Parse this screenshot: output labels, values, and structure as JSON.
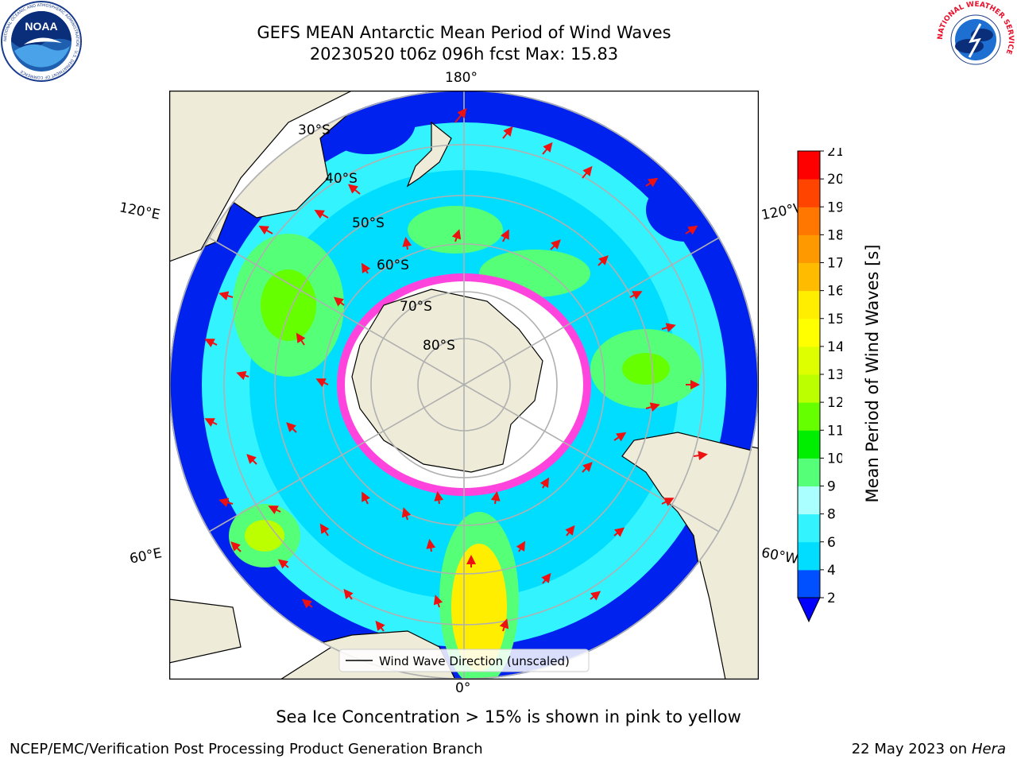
{
  "header": {
    "title_line1": "GEFS MEAN Antarctic Mean Period of Wind Waves",
    "title_line2": "20230520 t06z 096h fcst   Max: 15.83"
  },
  "logos": {
    "noaa": {
      "icon": "noaa-logo",
      "text": "NOAA",
      "ring_text": "NATIONAL OCEANIC AND ATMOSPHERIC ADMINISTRATION · U.S. DEPARTMENT OF COMMERCE"
    },
    "nws": {
      "icon": "nws-logo",
      "ring_text": "NATIONAL WEATHER SERVICE"
    }
  },
  "map": {
    "projection": "south-polar-stereographic",
    "longitude_labels": {
      "top": "180°",
      "bottom": "0°",
      "upper_left": "120°E",
      "upper_right": "120°W",
      "lower_left": "60°E",
      "lower_right": "60°W"
    },
    "latitude_labels": [
      "30°S",
      "40°S",
      "50°S",
      "60°S",
      "70°S",
      "80°S"
    ],
    "legend_label": "Wind Wave Direction (unscaled)",
    "colors": {
      "land": "#eeecd9",
      "ice_edge": "#ff44dd",
      "arrow": "#ee1111",
      "grid": "#b0b0b0"
    }
  },
  "colorbar": {
    "label": "Mean Period of Wind Waves [s]",
    "ticks": [
      "2",
      "4",
      "6",
      "8",
      "9",
      "10",
      "11",
      "12",
      "13",
      "14",
      "15",
      "16",
      "17",
      "18",
      "19",
      "20",
      "21"
    ],
    "colors": [
      "#0050ff",
      "#00ddff",
      "#33f3ff",
      "#aaffff",
      "#55ff77",
      "#00ee00",
      "#66ff00",
      "#bbff00",
      "#ddff00",
      "#ffff00",
      "#ffee00",
      "#ffbb00",
      "#ff9900",
      "#ff7700",
      "#ff4400",
      "#ff0000"
    ],
    "extend_color": "#0000ff"
  },
  "footnote": "Sea Ice Concentration > 15% is shown in pink to yellow",
  "credits": {
    "left": "NCEP/EMC/Verification Post Processing Product Generation Branch",
    "right_date": "22 May 2023 on",
    "right_host": "Hera"
  }
}
